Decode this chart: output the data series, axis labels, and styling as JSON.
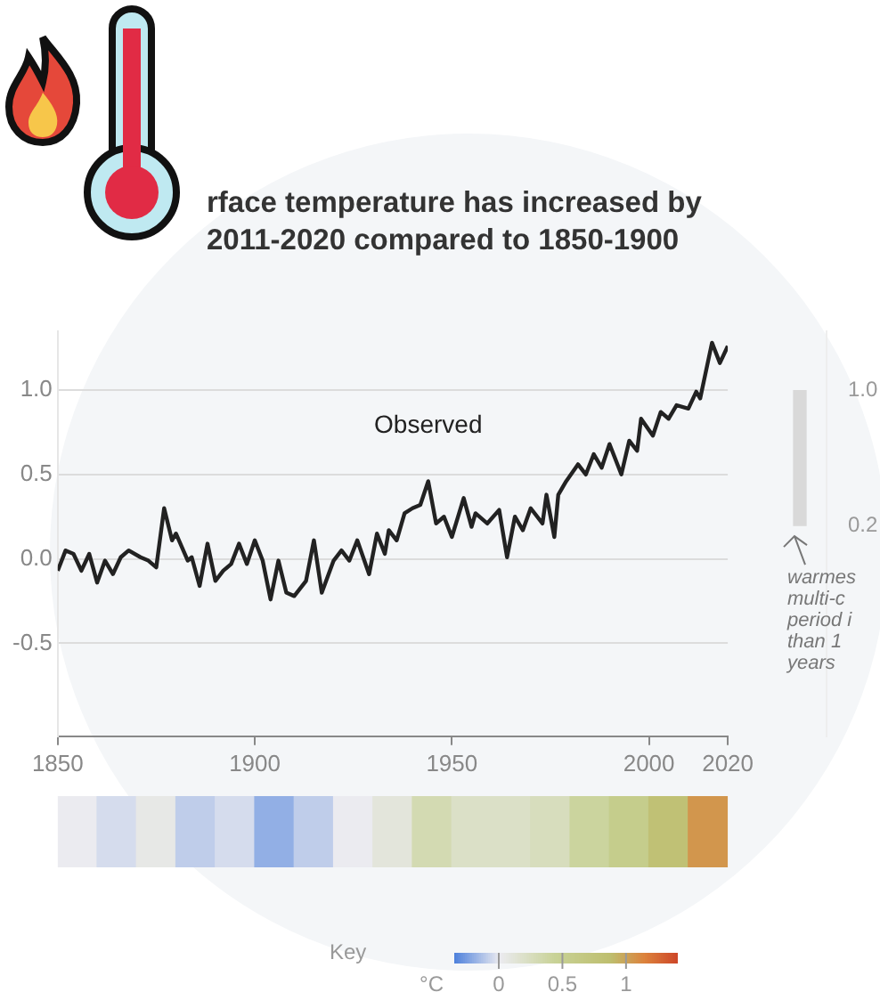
{
  "chart_data": [
    {
      "type": "line",
      "title": "rface temperature has increased by\n2011-2020 compared to 1850-1900",
      "x": [
        1850,
        1852,
        1854,
        1856,
        1858,
        1860,
        1862,
        1864,
        1866,
        1868,
        1871,
        1873,
        1875,
        1877,
        1879,
        1880,
        1883,
        1884,
        1886,
        1888,
        1890,
        1892,
        1894,
        1896,
        1898,
        1900,
        1902,
        1904,
        1906,
        1908,
        1910,
        1913,
        1915,
        1917,
        1920,
        1922,
        1924,
        1926,
        1929,
        1931,
        1933,
        1934,
        1936,
        1938,
        1940,
        1942,
        1944,
        1946,
        1948,
        1950,
        1953,
        1955,
        1956,
        1959,
        1962,
        1964,
        1966,
        1968,
        1970,
        1973,
        1974,
        1976,
        1977,
        1979,
        1982,
        1984,
        1986,
        1988,
        1990,
        1993,
        1995,
        1997,
        1998,
        2001,
        2003,
        2005,
        2007,
        2010,
        2012,
        2013,
        2016,
        2018,
        2020
      ],
      "series": [
        {
          "name": "Observed",
          "color": "#222222",
          "values": [
            -0.07,
            0.05,
            0.03,
            -0.07,
            0.03,
            -0.14,
            -0.01,
            -0.09,
            0.01,
            0.05,
            0.01,
            -0.01,
            -0.05,
            0.3,
            0.11,
            0.15,
            -0.01,
            0.01,
            -0.16,
            0.09,
            -0.13,
            -0.07,
            -0.03,
            0.09,
            -0.03,
            0.11,
            -0.01,
            -0.24,
            -0.01,
            -0.2,
            -0.22,
            -0.13,
            0.11,
            -0.2,
            -0.01,
            0.05,
            -0.01,
            0.11,
            -0.09,
            0.15,
            0.03,
            0.17,
            0.11,
            0.27,
            0.3,
            0.32,
            0.46,
            0.21,
            0.25,
            0.13,
            0.36,
            0.19,
            0.27,
            0.21,
            0.29,
            0.01,
            0.25,
            0.17,
            0.3,
            0.21,
            0.38,
            0.13,
            0.38,
            0.46,
            0.56,
            0.5,
            0.62,
            0.54,
            0.68,
            0.5,
            0.7,
            0.64,
            0.83,
            0.73,
            0.87,
            0.83,
            0.91,
            0.89,
            0.99,
            0.95,
            1.28,
            1.16,
            1.26
          ]
        }
      ],
      "xlim": [
        1850,
        2020
      ],
      "xticks": [
        1850,
        1900,
        1950,
        2000,
        2020
      ],
      "ylim": [
        -1.05,
        1.35
      ],
      "yticks": [
        {
          "value": -0.5,
          "label": "-0.5"
        },
        {
          "value": 0,
          "label": "0.0"
        },
        {
          "value": 0.5,
          "label": "0.5"
        },
        {
          "value": 1,
          "label": "1.0"
        }
      ],
      "grid": "y",
      "marker": "none",
      "legend": false
    },
    {
      "type": "bar",
      "categories": [
        null
      ],
      "base": [
        0.2
      ],
      "values": [
        0.8
      ],
      "color": "#d9d9d9",
      "ylim": [
        -1.05,
        1.35
      ],
      "yticks": [
        {
          "value": 0.2,
          "label": "0.2"
        },
        {
          "value": 1,
          "label": "1.0"
        }
      ],
      "tick_labels": "y",
      "annotations": [
        "warmes\nmulti-c\nperiod i\nthan 1\nyears"
      ]
    },
    {
      "type": "heatmap",
      "categories": [
        null,
        null,
        null,
        null,
        null,
        null,
        null,
        null,
        null,
        null,
        null,
        null,
        null,
        null,
        null,
        null,
        null
      ],
      "y_categories": [
        null
      ],
      "cells": [
        [
          0.0,
          -0.05,
          0.05,
          -0.1,
          -0.05,
          -0.2,
          -0.1,
          0.0,
          0.1,
          0.3,
          0.2,
          0.2,
          0.25,
          0.4,
          0.55,
          0.8,
          1.05
        ]
      ],
      "clim": [
        -0.35,
        1.4
      ],
      "cticks": [
        0,
        0.5,
        1
      ],
      "clabel": "°C",
      "annotations": [
        "Key"
      ]
    }
  ]
}
